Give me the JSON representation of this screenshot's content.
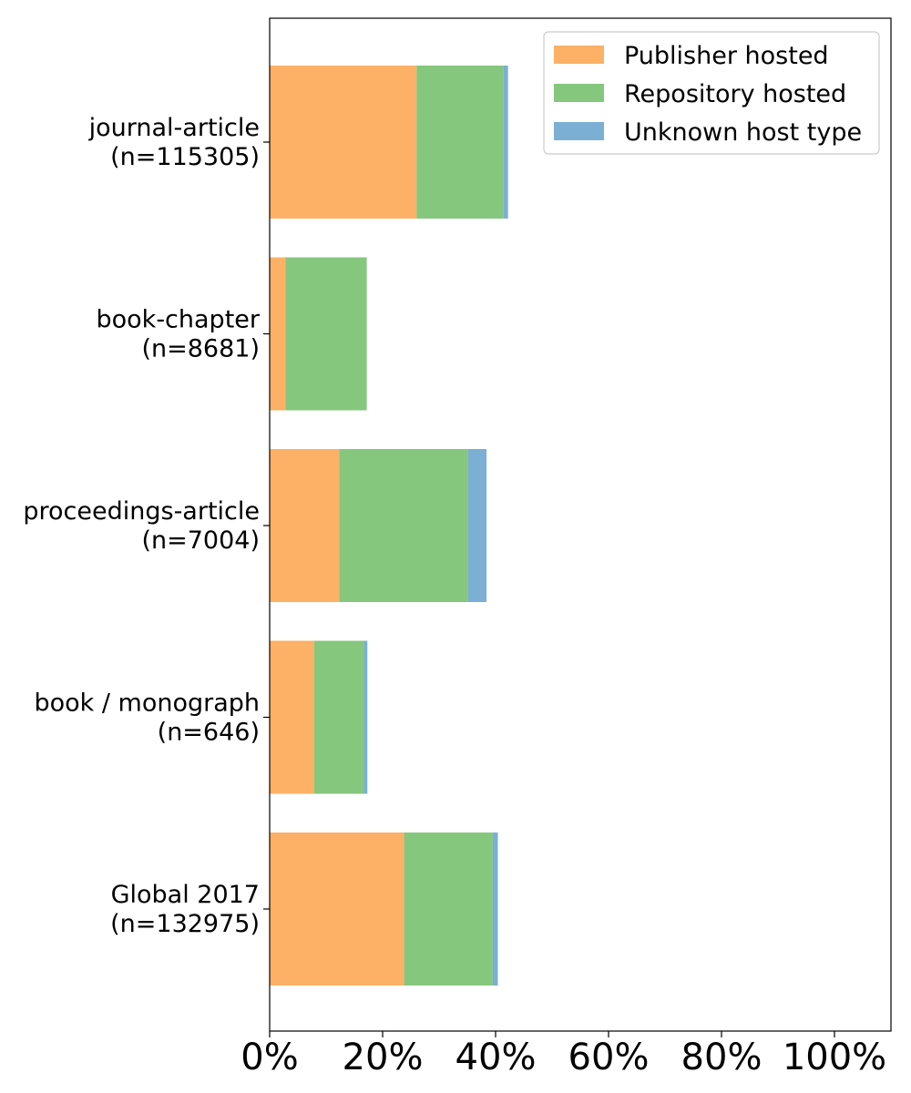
{
  "chart_data": {
    "type": "bar",
    "orientation": "horizontal",
    "stacked": true,
    "categories": [
      [
        "journal-article",
        "(n=115305)"
      ],
      [
        "book-chapter",
        "(n=8681)"
      ],
      [
        "proceedings-article",
        "(n=7004)"
      ],
      [
        "book / monograph",
        "(n=646)"
      ],
      [
        "Global 2017",
        "(n=132975)"
      ]
    ],
    "series": [
      {
        "name": "Publisher hosted",
        "color": "#fdb166",
        "values": [
          26.0,
          2.8,
          12.3,
          7.9,
          23.8
        ]
      },
      {
        "name": "Repository hosted",
        "color": "#86c77e",
        "values": [
          15.4,
          14.4,
          22.8,
          8.8,
          15.7
        ]
      },
      {
        "name": "Unknown host type",
        "color": "#7bafd4",
        "values": [
          0.8,
          0.0,
          3.3,
          0.6,
          0.9
        ]
      }
    ],
    "xlim": [
      0,
      110
    ],
    "xticks": [
      0,
      20,
      40,
      60,
      80,
      100
    ],
    "xtick_labels": [
      "0%",
      "20%",
      "40%",
      "60%",
      "80%",
      "100%"
    ],
    "grid": false,
    "legend_position": "top-right"
  }
}
